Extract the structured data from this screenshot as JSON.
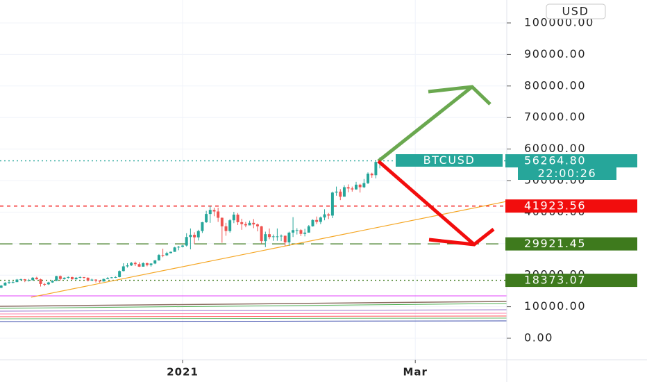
{
  "chart_data": {
    "type": "candlestick",
    "symbol": "BTCUSD",
    "currency": "USD",
    "countdown": "22:00:26",
    "up_color": "#26a69a",
    "down_color": "#ef5350",
    "xlim": [
      -0.3,
      128.2
    ],
    "xticks": [
      {
        "value": 46,
        "label": "2021"
      },
      {
        "value": 105,
        "label": "Mar"
      }
    ],
    "ylim": [
      -6830,
      107270
    ],
    "yticks": [
      {
        "value": 0,
        "label": "0.00"
      },
      {
        "value": 10000,
        "label": "10000.00"
      },
      {
        "value": 20000,
        "label": "20000.00"
      },
      {
        "value": 30000,
        "label": "30000.00"
      },
      {
        "value": 40000,
        "label": "40000.00"
      },
      {
        "value": 50000,
        "label": "50000.00"
      },
      {
        "value": 60000,
        "label": "60000.00"
      },
      {
        "value": 70000,
        "label": "70000.00"
      },
      {
        "value": 80000,
        "label": "80000.00"
      },
      {
        "value": 90000,
        "label": "90000.00"
      },
      {
        "value": 100000,
        "label": "100000.00"
      }
    ],
    "x": [
      0,
      1,
      2,
      3,
      4,
      5,
      6,
      7,
      8,
      9,
      10,
      11,
      12,
      13,
      14,
      15,
      16,
      17,
      18,
      19,
      20,
      21,
      22,
      23,
      24,
      25,
      26,
      27,
      28,
      29,
      30,
      31,
      32,
      33,
      34,
      35,
      36,
      37,
      38,
      39,
      40,
      41,
      42,
      43,
      44,
      45,
      46,
      47,
      48,
      49,
      50,
      51,
      52,
      53,
      54,
      55,
      56,
      57,
      58,
      59,
      60,
      61,
      62,
      63,
      64,
      65,
      66,
      67,
      68,
      69,
      70,
      71,
      72,
      73,
      74,
      75,
      76,
      77,
      78,
      79,
      80,
      81,
      82,
      83,
      84,
      85,
      86,
      87,
      88,
      89,
      90,
      91,
      92,
      93,
      94,
      95,
      96
    ],
    "open": [
      16000,
      16700,
      17600,
      17800,
      17800,
      18600,
      18700,
      18400,
      18400,
      19200,
      18700,
      17200,
      17100,
      17700,
      18200,
      19700,
      18800,
      19200,
      19400,
      18700,
      19200,
      19400,
      19200,
      18300,
      18600,
      18300,
      18000,
      18800,
      19100,
      19300,
      19400,
      21300,
      22800,
      23100,
      23900,
      23500,
      22700,
      23800,
      23200,
      23700,
      24700,
      26400,
      26300,
      27000,
      27400,
      28800,
      29000,
      29400,
      32100,
      32800,
      32000,
      34000,
      36800,
      39400,
      40700,
      40200,
      38200,
      35500,
      34000,
      37400,
      39200,
      36800,
      36200,
      35800,
      36600,
      36100,
      35500,
      30800,
      33000,
      32100,
      32300,
      32300,
      32500,
      30400,
      33500,
      34300,
      34300,
      33100,
      33500,
      35500,
      37500,
      36900,
      38300,
      39300,
      38900,
      46200,
      46500,
      44900,
      47900,
      47500,
      47200,
      48700,
      47900,
      49200,
      52200,
      51700,
      55900
    ],
    "high": [
      16900,
      17800,
      18400,
      18100,
      18800,
      18900,
      18800,
      18800,
      19400,
      19500,
      18900,
      17500,
      17900,
      18400,
      19800,
      19900,
      19300,
      19600,
      19500,
      19400,
      19600,
      19400,
      19300,
      18900,
      18700,
      18400,
      18900,
      19400,
      19400,
      19600,
      21500,
      23800,
      23800,
      24200,
      24300,
      24100,
      24100,
      24000,
      23800,
      24800,
      26700,
      28400,
      27400,
      27500,
      29000,
      29300,
      29600,
      33300,
      34800,
      33600,
      34400,
      36900,
      40400,
      41900,
      41400,
      41400,
      38300,
      36600,
      37800,
      40100,
      39700,
      37900,
      36900,
      37300,
      37800,
      36400,
      35600,
      33800,
      34800,
      32900,
      34800,
      32900,
      32600,
      33800,
      38400,
      34900,
      34600,
      34700,
      35900,
      37700,
      38600,
      38600,
      40900,
      39700,
      46500,
      48100,
      47300,
      48500,
      48800,
      48100,
      49600,
      49000,
      50500,
      52600,
      52500,
      56300,
      57400
    ],
    "low": [
      15900,
      16600,
      17200,
      17400,
      17800,
      18300,
      17800,
      18000,
      18300,
      18600,
      16400,
      16500,
      16900,
      17600,
      18100,
      18300,
      18600,
      18900,
      18600,
      18600,
      19000,
      18900,
      18000,
      18200,
      17700,
      17600,
      18000,
      18700,
      19000,
      19100,
      19300,
      21200,
      22400,
      22900,
      22900,
      22600,
      22700,
      22800,
      22700,
      23500,
      24600,
      25700,
      26100,
      26900,
      27400,
      27900,
      28800,
      29100,
      28200,
      30000,
      31000,
      33400,
      36600,
      36600,
      38700,
      36900,
      30300,
      32500,
      33500,
      36500,
      35900,
      34400,
      35200,
      35800,
      34900,
      33900,
      30100,
      28900,
      31400,
      30900,
      30900,
      30800,
      29300,
      29300,
      32100,
      32900,
      32400,
      32300,
      33500,
      35400,
      36200,
      36200,
      37400,
      37800,
      38100,
      45200,
      43800,
      44900,
      46300,
      46500,
      47100,
      46200,
      47600,
      48900,
      50900,
      50700,
      53900
    ],
    "close": [
      16700,
      17600,
      17800,
      17800,
      18600,
      18700,
      18400,
      18400,
      19200,
      18700,
      17200,
      17100,
      17700,
      18200,
      19700,
      18800,
      19200,
      19400,
      18700,
      19200,
      19400,
      19200,
      18300,
      18600,
      18300,
      18000,
      18800,
      19100,
      19300,
      19400,
      21300,
      22800,
      23100,
      23900,
      23500,
      22700,
      23800,
      23200,
      23700,
      24700,
      26400,
      26300,
      27000,
      27400,
      28800,
      29000,
      29400,
      32100,
      32800,
      32000,
      34000,
      36800,
      39400,
      40700,
      40200,
      38200,
      35500,
      34000,
      37400,
      39200,
      36800,
      36200,
      35800,
      36600,
      36100,
      35500,
      30800,
      33000,
      32100,
      32300,
      32300,
      32500,
      30400,
      33500,
      34300,
      34300,
      33100,
      33500,
      35500,
      37500,
      36900,
      38300,
      39300,
      38900,
      46200,
      46500,
      44900,
      47900,
      47500,
      47200,
      48700,
      47900,
      49200,
      52200,
      51700,
      55900,
      56264.8
    ],
    "price_lines": [
      {
        "value": {
          "value": 56264.8,
          "label": "56264.80"
        },
        "color": "#26a69a",
        "style": "dotted"
      },
      {
        "value": {
          "value": 41923.56,
          "label": "41923.56"
        },
        "color": "#f20d0d",
        "style": "dashed"
      },
      {
        "value": {
          "value": 29921.45,
          "label": "29921.45"
        },
        "color": "#3e7a1d",
        "style": "longdash"
      },
      {
        "value": {
          "value": 18373.07,
          "label": "18373.07"
        },
        "color": "#3e7a1d",
        "style": "dotted"
      }
    ],
    "trendline": {
      "x": [
        7.6,
        128.2
      ],
      "y": [
        13000,
        43400
      ],
      "color": "#f5a623"
    }
  }
}
